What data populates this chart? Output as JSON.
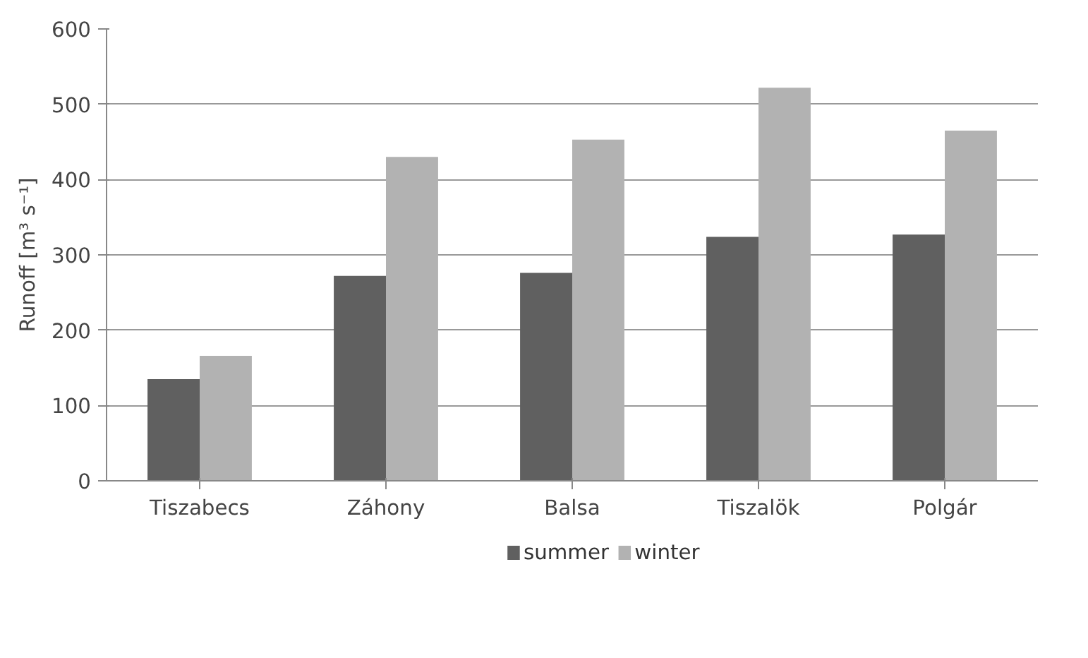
{
  "chart_data": {
    "type": "bar",
    "ylabel": "Runoff [m³ s⁻¹]",
    "categories": [
      "Tiszabecs",
      "Záhony",
      "Balsa",
      "Tiszalök",
      "Polgár"
    ],
    "series": [
      {
        "name": "summer",
        "color": "#606060",
        "values": [
          135,
          272,
          276,
          324,
          327
        ]
      },
      {
        "name": "winter",
        "color": "#b2b2b2",
        "values": [
          166,
          430,
          453,
          522,
          465
        ]
      }
    ],
    "ylim": [
      0,
      600
    ],
    "yticks": [
      0,
      100,
      200,
      300,
      400,
      500,
      600
    ],
    "grid": "y",
    "legend": "bottom"
  }
}
